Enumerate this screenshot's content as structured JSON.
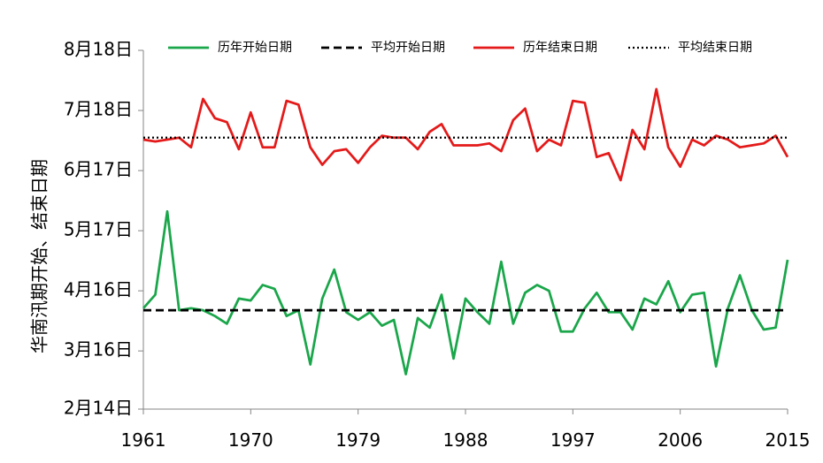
{
  "chart_data": {
    "type": "line",
    "title": "",
    "xlabel": "",
    "ylabel": "华南汛期开始、结束日期",
    "x": [
      1961,
      1962,
      1963,
      1964,
      1965,
      1966,
      1967,
      1968,
      1969,
      1970,
      1971,
      1972,
      1973,
      1974,
      1975,
      1976,
      1977,
      1978,
      1979,
      1980,
      1981,
      1982,
      1983,
      1984,
      1985,
      1986,
      1987,
      1988,
      1989,
      1990,
      1991,
      1992,
      1993,
      1994,
      1995,
      1996,
      1997,
      1998,
      1999,
      2000,
      2001,
      2002,
      2003,
      2004,
      2005,
      2006,
      2007,
      2008,
      2009,
      2010,
      2011,
      2012,
      2013,
      2014,
      2015
    ],
    "x_ticks": [
      "1961",
      "1970",
      "1979",
      "1988",
      "1997",
      "2006",
      "2015"
    ],
    "xlim": [
      1961,
      2015
    ],
    "y_ticks": [
      {
        "label": "2月14日",
        "value": 45
      },
      {
        "label": "3月16日",
        "value": 75
      },
      {
        "label": "4月16日",
        "value": 106
      },
      {
        "label": "5月17日",
        "value": 137
      },
      {
        "label": "6月17日",
        "value": 168
      },
      {
        "label": "7月18日",
        "value": 199
      },
      {
        "label": "8月18日",
        "value": 230
      }
    ],
    "ylim": [
      45,
      230
    ],
    "y_unit": "day of year",
    "legend_placement": "top",
    "series": [
      {
        "name": "历年开始日期",
        "color": "#1aa64a",
        "style": "solid",
        "values": [
          97,
          104,
          147,
          96,
          97,
          96,
          93,
          89,
          102,
          101,
          109,
          107,
          93,
          96,
          68,
          102,
          117,
          95,
          91,
          95,
          88,
          91,
          63,
          92,
          87,
          104,
          71,
          102,
          95,
          89,
          121,
          89,
          105,
          109,
          106,
          85,
          85,
          97,
          105,
          95,
          95,
          86,
          102,
          99,
          111,
          95,
          104,
          105,
          67,
          97,
          114,
          96,
          86,
          87,
          122
        ]
      },
      {
        "name": "平均开始日期",
        "color": "#000000",
        "style": "dashed",
        "values": [
          96,
          96,
          96,
          96,
          96,
          96,
          96,
          96,
          96,
          96,
          96,
          96,
          96,
          96,
          96,
          96,
          96,
          96,
          96,
          96,
          96,
          96,
          96,
          96,
          96,
          96,
          96,
          96,
          96,
          96,
          96,
          96,
          96,
          96,
          96,
          96,
          96,
          96,
          96,
          96,
          96,
          96,
          96,
          96,
          96,
          96,
          96,
          96,
          96,
          96,
          96,
          96,
          96,
          96,
          96
        ]
      },
      {
        "name": "历年结束日期",
        "color": "#e41a1a",
        "style": "solid",
        "values": [
          184,
          183,
          184,
          185,
          180,
          205,
          195,
          193,
          179,
          198,
          180,
          180,
          204,
          202,
          180,
          171,
          178,
          179,
          172,
          180,
          186,
          185,
          185,
          179,
          188,
          192,
          181,
          181,
          181,
          182,
          178,
          194,
          200,
          178,
          184,
          181,
          204,
          203,
          175,
          177,
          163,
          189,
          179,
          210,
          180,
          170,
          184,
          181,
          186,
          184,
          180,
          181,
          182,
          186,
          175
        ]
      },
      {
        "name": "平均结束日期",
        "color": "#000000",
        "style": "dotted",
        "values": [
          185,
          185,
          185,
          185,
          185,
          185,
          185,
          185,
          185,
          185,
          185,
          185,
          185,
          185,
          185,
          185,
          185,
          185,
          185,
          185,
          185,
          185,
          185,
          185,
          185,
          185,
          185,
          185,
          185,
          185,
          185,
          185,
          185,
          185,
          185,
          185,
          185,
          185,
          185,
          185,
          185,
          185,
          185,
          185,
          185,
          185,
          185,
          185,
          185,
          185,
          185,
          185,
          185,
          185,
          185
        ]
      }
    ]
  }
}
